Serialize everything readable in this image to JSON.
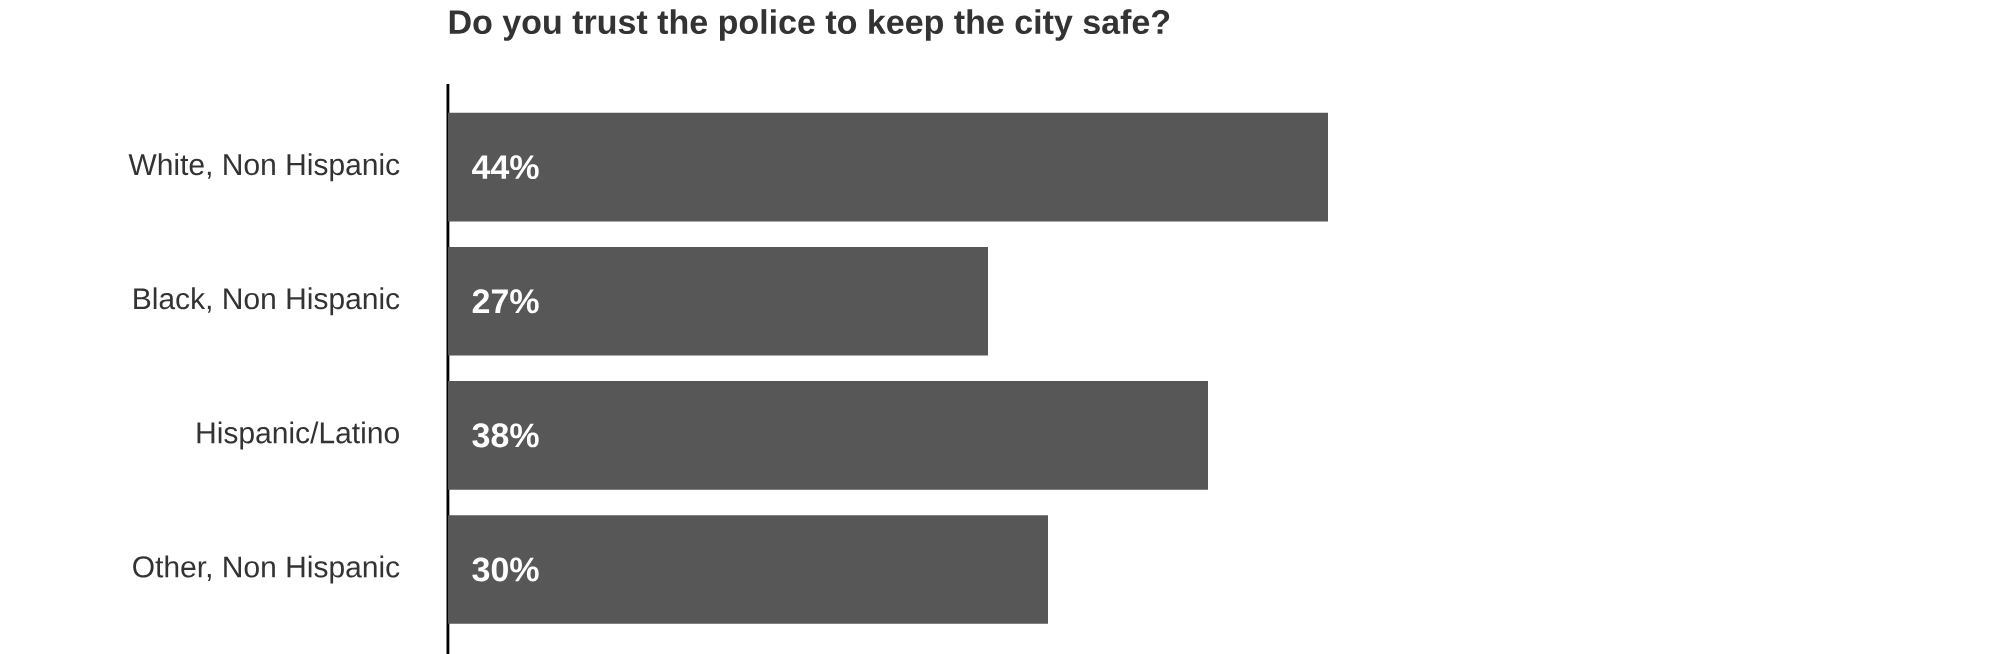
{
  "chart_data": {
    "type": "bar",
    "orientation": "horizontal",
    "title": "Do you trust the police to keep the city safe?",
    "categories": [
      "White, Non Hispanic",
      "Black, Non Hispanic",
      "Hispanic/Latino",
      "Other, Non Hispanic"
    ],
    "values": [
      44,
      27,
      38,
      30
    ],
    "value_labels": [
      "44%",
      "27%",
      "38%",
      "30%"
    ],
    "color": "#575757"
  }
}
